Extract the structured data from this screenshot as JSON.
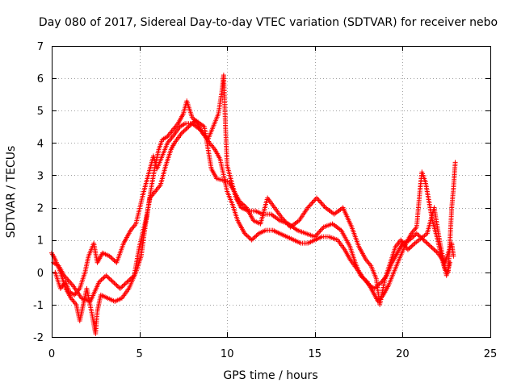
{
  "chart_data": {
    "type": "scatter",
    "title": "Day 080 of 2017, Sidereal Day-to-day VTEC variation (SDTVAR) for receiver nebo",
    "xlabel": "GPS time / hours",
    "ylabel": "SDTVAR / TECUs",
    "xlim": [
      0,
      25
    ],
    "ylim": [
      -2,
      7
    ],
    "x_ticks": [
      "0",
      "5",
      "10",
      "15",
      "20",
      "25"
    ],
    "y_ticks": [
      "-2",
      "-1",
      "0",
      "1",
      "2",
      "3",
      "4",
      "5",
      "6",
      "7"
    ],
    "grid": true,
    "marker": "plus",
    "series": [
      {
        "name": "SDTVAR",
        "color": "#ff0000",
        "trace_a": [
          [
            0.0,
            0.6
          ],
          [
            0.2,
            0.4
          ],
          [
            0.5,
            0.0
          ],
          [
            0.8,
            -0.5
          ],
          [
            1.1,
            -0.8
          ],
          [
            1.4,
            -1.0
          ],
          [
            1.6,
            -1.5
          ],
          [
            1.8,
            -1.0
          ],
          [
            2.0,
            -0.5
          ],
          [
            2.3,
            -1.3
          ],
          [
            2.5,
            -1.9
          ],
          [
            2.6,
            -1.2
          ],
          [
            2.8,
            -0.7
          ],
          [
            3.2,
            -0.8
          ],
          [
            3.6,
            -0.9
          ],
          [
            4.0,
            -0.8
          ],
          [
            4.4,
            -0.5
          ],
          [
            4.8,
            0.0
          ],
          [
            5.1,
            0.5
          ],
          [
            5.3,
            1.3
          ],
          [
            5.5,
            2.0
          ],
          [
            5.7,
            2.7
          ],
          [
            5.9,
            3.3
          ],
          [
            6.1,
            3.8
          ],
          [
            6.3,
            4.1
          ],
          [
            6.6,
            4.2
          ],
          [
            6.9,
            4.4
          ],
          [
            7.2,
            4.6
          ],
          [
            7.5,
            4.9
          ],
          [
            7.7,
            5.3
          ],
          [
            8.0,
            4.8
          ],
          [
            8.3,
            4.6
          ],
          [
            8.6,
            4.3
          ],
          [
            8.9,
            4.1
          ],
          [
            9.2,
            4.5
          ],
          [
            9.5,
            4.9
          ],
          [
            9.7,
            5.6
          ],
          [
            9.8,
            6.1
          ],
          [
            9.9,
            4.6
          ],
          [
            10.0,
            3.3
          ],
          [
            10.2,
            2.9
          ],
          [
            10.5,
            2.3
          ],
          [
            10.8,
            2.0
          ],
          [
            11.2,
            1.9
          ],
          [
            11.6,
            1.9
          ],
          [
            12.0,
            1.8
          ],
          [
            12.5,
            1.8
          ],
          [
            13.0,
            1.6
          ],
          [
            13.5,
            1.5
          ],
          [
            14.0,
            1.3
          ],
          [
            14.5,
            1.2
          ],
          [
            15.0,
            1.1
          ],
          [
            15.5,
            1.4
          ],
          [
            16.0,
            1.5
          ],
          [
            16.5,
            1.3
          ],
          [
            17.0,
            0.8
          ],
          [
            17.3,
            0.3
          ],
          [
            17.6,
            -0.1
          ],
          [
            18.0,
            -0.3
          ],
          [
            18.3,
            -0.6
          ],
          [
            18.6,
            -0.9
          ],
          [
            18.9,
            -0.7
          ],
          [
            19.2,
            -0.4
          ],
          [
            19.5,
            0.0
          ],
          [
            19.8,
            0.4
          ],
          [
            20.2,
            0.9
          ],
          [
            20.5,
            1.2
          ],
          [
            20.8,
            1.4
          ],
          [
            21.0,
            2.6
          ],
          [
            21.1,
            3.1
          ],
          [
            21.3,
            2.8
          ],
          [
            21.5,
            2.2
          ],
          [
            21.7,
            1.6
          ],
          [
            22.0,
            1.0
          ],
          [
            22.2,
            0.5
          ],
          [
            22.4,
            0.1
          ],
          [
            22.6,
            0.0
          ],
          [
            22.8,
            2.0
          ],
          [
            22.9,
            2.6
          ],
          [
            23.0,
            3.4
          ]
        ],
        "trace_b": [
          [
            0.2,
            0.0
          ],
          [
            0.5,
            -0.5
          ],
          [
            0.8,
            -0.3
          ],
          [
            1.0,
            -0.6
          ],
          [
            1.3,
            -0.7
          ],
          [
            1.6,
            -0.5
          ],
          [
            1.9,
            0.0
          ],
          [
            2.1,
            0.5
          ],
          [
            2.4,
            0.9
          ],
          [
            2.6,
            0.3
          ],
          [
            2.9,
            0.6
          ],
          [
            3.3,
            0.5
          ],
          [
            3.7,
            0.3
          ],
          [
            4.1,
            0.9
          ],
          [
            4.5,
            1.3
          ],
          [
            4.8,
            1.5
          ],
          [
            5.2,
            2.4
          ],
          [
            5.5,
            3.0
          ],
          [
            5.8,
            3.6
          ],
          [
            6.0,
            3.2
          ],
          [
            6.3,
            3.6
          ],
          [
            6.6,
            4.0
          ],
          [
            6.9,
            4.2
          ],
          [
            7.3,
            4.5
          ],
          [
            7.6,
            4.6
          ],
          [
            8.0,
            4.6
          ],
          [
            8.5,
            4.4
          ],
          [
            9.0,
            4.0
          ],
          [
            9.3,
            3.8
          ],
          [
            9.6,
            3.5
          ],
          [
            10.0,
            2.5
          ],
          [
            10.3,
            2.1
          ],
          [
            10.6,
            1.6
          ],
          [
            11.0,
            1.2
          ],
          [
            11.4,
            1.0
          ],
          [
            11.8,
            1.2
          ],
          [
            12.2,
            1.3
          ],
          [
            12.6,
            1.3
          ],
          [
            13.0,
            1.2
          ],
          [
            13.4,
            1.1
          ],
          [
            13.8,
            1.0
          ],
          [
            14.2,
            0.9
          ],
          [
            14.6,
            0.9
          ],
          [
            15.0,
            1.0
          ],
          [
            15.4,
            1.1
          ],
          [
            15.8,
            1.1
          ],
          [
            16.3,
            1.0
          ],
          [
            16.7,
            0.7
          ],
          [
            17.0,
            0.4
          ],
          [
            17.4,
            0.1
          ],
          [
            17.8,
            -0.2
          ],
          [
            18.1,
            -0.4
          ],
          [
            18.4,
            -0.5
          ],
          [
            18.8,
            -0.3
          ],
          [
            19.1,
            -0.1
          ],
          [
            19.4,
            0.3
          ],
          [
            19.7,
            0.6
          ],
          [
            20.0,
            0.9
          ],
          [
            20.4,
            1.0
          ],
          [
            20.8,
            1.2
          ],
          [
            21.2,
            1.0
          ],
          [
            21.6,
            0.8
          ],
          [
            22.0,
            0.6
          ],
          [
            22.4,
            0.3
          ],
          [
            22.8,
            0.9
          ],
          [
            22.9,
            0.5
          ]
        ],
        "trace_c": [
          [
            0.1,
            0.3
          ],
          [
            0.4,
            0.2
          ],
          [
            0.7,
            -0.1
          ],
          [
            1.2,
            -0.4
          ],
          [
            1.7,
            -0.8
          ],
          [
            2.2,
            -0.9
          ],
          [
            2.7,
            -0.3
          ],
          [
            3.1,
            -0.1
          ],
          [
            3.5,
            -0.3
          ],
          [
            3.9,
            -0.5
          ],
          [
            4.3,
            -0.3
          ],
          [
            4.7,
            -0.1
          ],
          [
            5.0,
            0.8
          ],
          [
            5.4,
            1.7
          ],
          [
            5.6,
            2.3
          ],
          [
            6.2,
            2.7
          ],
          [
            6.5,
            3.3
          ],
          [
            6.8,
            3.8
          ],
          [
            7.0,
            4.0
          ],
          [
            7.4,
            4.3
          ],
          [
            7.8,
            4.5
          ],
          [
            8.2,
            4.7
          ],
          [
            8.7,
            4.5
          ],
          [
            9.1,
            3.2
          ],
          [
            9.4,
            2.9
          ],
          [
            10.1,
            2.8
          ],
          [
            10.4,
            2.5
          ],
          [
            10.7,
            2.2
          ],
          [
            11.1,
            2.0
          ],
          [
            11.5,
            1.6
          ],
          [
            11.9,
            1.5
          ],
          [
            12.3,
            2.3
          ],
          [
            12.7,
            2.0
          ],
          [
            13.1,
            1.7
          ],
          [
            13.6,
            1.4
          ],
          [
            14.1,
            1.6
          ],
          [
            14.6,
            2.0
          ],
          [
            15.1,
            2.3
          ],
          [
            15.6,
            2.0
          ],
          [
            16.1,
            1.8
          ],
          [
            16.6,
            2.0
          ],
          [
            17.1,
            1.4
          ],
          [
            17.5,
            0.8
          ],
          [
            17.9,
            0.4
          ],
          [
            18.2,
            0.2
          ],
          [
            18.5,
            -0.2
          ],
          [
            18.7,
            -1.0
          ],
          [
            19.0,
            -0.2
          ],
          [
            19.3,
            0.3
          ],
          [
            19.6,
            0.8
          ],
          [
            19.9,
            1.0
          ],
          [
            20.3,
            0.7
          ],
          [
            20.7,
            0.9
          ],
          [
            21.4,
            1.2
          ],
          [
            21.8,
            2.0
          ],
          [
            22.1,
            1.0
          ],
          [
            22.5,
            -0.1
          ],
          [
            22.7,
            0.3
          ]
        ]
      }
    ]
  }
}
